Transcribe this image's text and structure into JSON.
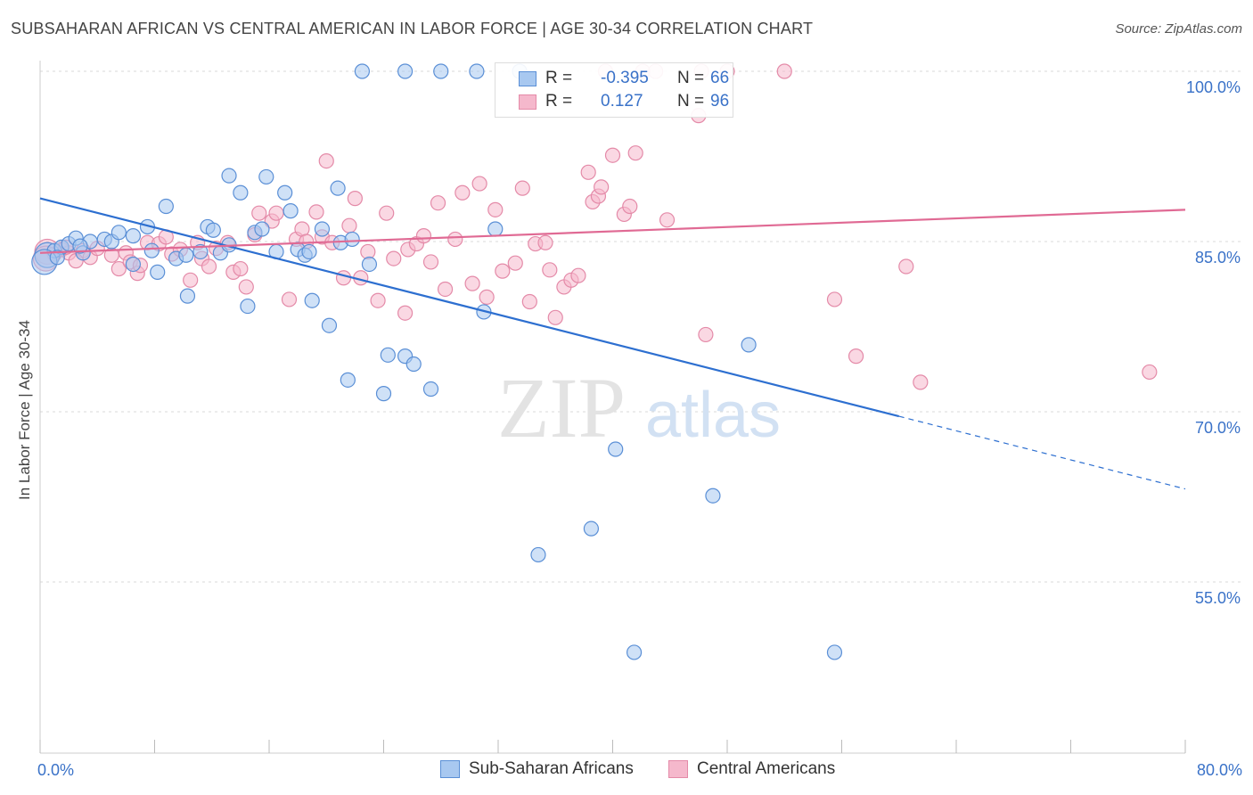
{
  "title": "SUBSAHARAN AFRICAN VS CENTRAL AMERICAN IN LABOR FORCE | AGE 30-34 CORRELATION CHART",
  "source": "Source: ZipAtlas.com",
  "watermark": {
    "zip": "ZIP",
    "atlas": "atlas"
  },
  "colors": {
    "blue_fill": "#a8c8f0",
    "blue_stroke": "#5a8fd6",
    "blue_line": "#2d6fd0",
    "pink_fill": "#f5b8cc",
    "pink_stroke": "#e48aa8",
    "pink_line": "#e06a94",
    "tick_label": "#3a72c8",
    "grid": "#d8d8d8"
  },
  "legend": {
    "series1": {
      "r_label": "R =",
      "r_value": "-0.395",
      "n_label": "N =",
      "n_value": "66"
    },
    "series2": {
      "r_label": "R =",
      "r_value": "0.127",
      "n_label": "N =",
      "n_value": "96"
    }
  },
  "chart_data": {
    "type": "scatter",
    "title": "SUBSAHARAN AFRICAN VS CENTRAL AMERICAN IN LABOR FORCE | AGE 30-34 CORRELATION CHART",
    "xlabel": "",
    "ylabel": "In Labor Force | Age 30-34",
    "xlim": [
      0,
      80
    ],
    "ylim": [
      40,
      102
    ],
    "x_tick_labels": [
      "0.0%",
      "80.0%"
    ],
    "y_ticks": [
      55,
      70,
      85,
      100
    ],
    "y_tick_labels": [
      "55.0%",
      "70.0%",
      "85.0%",
      "100.0%"
    ],
    "grid": true,
    "legend_position": "bottom",
    "series": [
      {
        "name": "Sub-Saharan Africans",
        "trend": {
          "x": [
            0,
            60
          ],
          "y": [
            88.8,
            69.6
          ],
          "dashed_to": [
            80,
            63.2
          ]
        },
        "points": [
          [
            0.5,
            83.8
          ],
          [
            1,
            84.2
          ],
          [
            1.5,
            84.5
          ],
          [
            2,
            84.8
          ],
          [
            2.5,
            85.3
          ],
          [
            3,
            84.0
          ],
          [
            3.5,
            85.0
          ],
          [
            4.5,
            85.2
          ],
          [
            5,
            85.0
          ],
          [
            5.5,
            85.8
          ],
          [
            6.5,
            85.5
          ],
          [
            6.5,
            83.0
          ],
          [
            7.5,
            86.3
          ],
          [
            7.8,
            84.2
          ],
          [
            8.2,
            82.3
          ],
          [
            8.8,
            88.1
          ],
          [
            9.5,
            83.5
          ],
          [
            10.2,
            83.8
          ],
          [
            10.3,
            80.2
          ],
          [
            11.2,
            84.1
          ],
          [
            11.7,
            86.3
          ],
          [
            12.1,
            86.0
          ],
          [
            12.6,
            84.0
          ],
          [
            13.2,
            84.7
          ],
          [
            13.2,
            90.8
          ],
          [
            14.0,
            89.3
          ],
          [
            14.5,
            79.3
          ],
          [
            15.0,
            85.8
          ],
          [
            15.5,
            86.1
          ],
          [
            15.8,
            90.7
          ],
          [
            16.5,
            84.1
          ],
          [
            17.1,
            89.3
          ],
          [
            17.5,
            87.7
          ],
          [
            18.0,
            84.3
          ],
          [
            18.5,
            83.8
          ],
          [
            18.8,
            84.1
          ],
          [
            19.0,
            79.8
          ],
          [
            19.7,
            86.1
          ],
          [
            20.2,
            77.6
          ],
          [
            20.8,
            89.7
          ],
          [
            21.0,
            84.9
          ],
          [
            21.5,
            72.8
          ],
          [
            21.8,
            85.2
          ],
          [
            22.5,
            100.0
          ],
          [
            23.0,
            83.0
          ],
          [
            24.0,
            71.6
          ],
          [
            24.3,
            75.0
          ],
          [
            25.5,
            100.0
          ],
          [
            25.5,
            74.9
          ],
          [
            26.1,
            74.2
          ],
          [
            27.3,
            72.0
          ],
          [
            28.0,
            100.0
          ],
          [
            30.5,
            100.0
          ],
          [
            31.0,
            78.8
          ],
          [
            31.8,
            86.1
          ],
          [
            33.5,
            100.0
          ],
          [
            34.8,
            57.4
          ],
          [
            38.5,
            59.7
          ],
          [
            40.2,
            66.7
          ],
          [
            41.5,
            48.8
          ],
          [
            47.0,
            62.6
          ],
          [
            49.5,
            75.9
          ],
          [
            55.5,
            48.8
          ],
          [
            0.3,
            83.2
          ],
          [
            1.2,
            83.6
          ],
          [
            2.8,
            84.6
          ]
        ]
      },
      {
        "name": "Central Americans",
        "trend": {
          "x": [
            0,
            80
          ],
          "y": [
            84.0,
            87.8
          ]
        },
        "points": [
          [
            0.5,
            84.1
          ],
          [
            1.0,
            83.9
          ],
          [
            1.5,
            84.3
          ],
          [
            2.0,
            84.0
          ],
          [
            3.0,
            84.2
          ],
          [
            3.5,
            83.6
          ],
          [
            4.0,
            84.4
          ],
          [
            5.0,
            83.8
          ],
          [
            5.5,
            82.6
          ],
          [
            6.0,
            84.0
          ],
          [
            6.3,
            83.2
          ],
          [
            6.8,
            82.2
          ],
          [
            7.0,
            82.9
          ],
          [
            7.5,
            84.9
          ],
          [
            8.3,
            84.8
          ],
          [
            8.8,
            85.4
          ],
          [
            9.2,
            83.9
          ],
          [
            9.8,
            84.3
          ],
          [
            10.5,
            81.6
          ],
          [
            11.0,
            84.9
          ],
          [
            11.3,
            83.5
          ],
          [
            11.8,
            82.8
          ],
          [
            12.3,
            84.4
          ],
          [
            13.1,
            84.9
          ],
          [
            13.5,
            82.3
          ],
          [
            14.0,
            82.6
          ],
          [
            14.4,
            81.0
          ],
          [
            15.0,
            85.6
          ],
          [
            15.3,
            87.5
          ],
          [
            16.2,
            86.8
          ],
          [
            16.5,
            87.5
          ],
          [
            17.4,
            79.9
          ],
          [
            17.9,
            85.2
          ],
          [
            18.3,
            86.1
          ],
          [
            18.6,
            85.0
          ],
          [
            19.3,
            87.6
          ],
          [
            19.7,
            85.4
          ],
          [
            20.0,
            92.1
          ],
          [
            20.4,
            84.9
          ],
          [
            21.2,
            81.8
          ],
          [
            21.6,
            86.4
          ],
          [
            22.0,
            88.8
          ],
          [
            22.4,
            81.8
          ],
          [
            22.9,
            84.1
          ],
          [
            23.6,
            79.8
          ],
          [
            24.2,
            87.5
          ],
          [
            24.7,
            83.5
          ],
          [
            25.5,
            78.7
          ],
          [
            25.7,
            84.3
          ],
          [
            26.3,
            84.8
          ],
          [
            26.8,
            85.5
          ],
          [
            27.3,
            83.2
          ],
          [
            27.8,
            88.4
          ],
          [
            28.3,
            80.8
          ],
          [
            29.0,
            85.2
          ],
          [
            29.5,
            89.3
          ],
          [
            30.2,
            81.3
          ],
          [
            30.7,
            90.1
          ],
          [
            31.2,
            80.1
          ],
          [
            31.8,
            87.8
          ],
          [
            32.3,
            82.4
          ],
          [
            33.2,
            83.1
          ],
          [
            33.7,
            89.7
          ],
          [
            34.2,
            79.7
          ],
          [
            34.6,
            84.8
          ],
          [
            35.3,
            84.9
          ],
          [
            35.6,
            82.5
          ],
          [
            36.0,
            78.3
          ],
          [
            36.6,
            81.0
          ],
          [
            37.1,
            81.6
          ],
          [
            37.6,
            82.0
          ],
          [
            38.3,
            91.1
          ],
          [
            38.6,
            88.5
          ],
          [
            39.0,
            89.0
          ],
          [
            39.5,
            100.0
          ],
          [
            39.2,
            89.8
          ],
          [
            40.0,
            92.6
          ],
          [
            40.8,
            87.4
          ],
          [
            41.2,
            88.1
          ],
          [
            41.6,
            92.8
          ],
          [
            42.1,
            100.0
          ],
          [
            43.0,
            100.0
          ],
          [
            43.8,
            86.9
          ],
          [
            46.0,
            96.1
          ],
          [
            46.5,
            76.8
          ],
          [
            48.0,
            100.0
          ],
          [
            52.0,
            100.0
          ],
          [
            55.5,
            79.9
          ],
          [
            57.0,
            74.9
          ],
          [
            60.5,
            82.8
          ],
          [
            61.5,
            72.6
          ],
          [
            77.5,
            73.5
          ],
          [
            46.2,
            100.0
          ],
          [
            0.4,
            83.5
          ],
          [
            1.8,
            84.5
          ],
          [
            2.5,
            83.3
          ]
        ]
      }
    ]
  }
}
